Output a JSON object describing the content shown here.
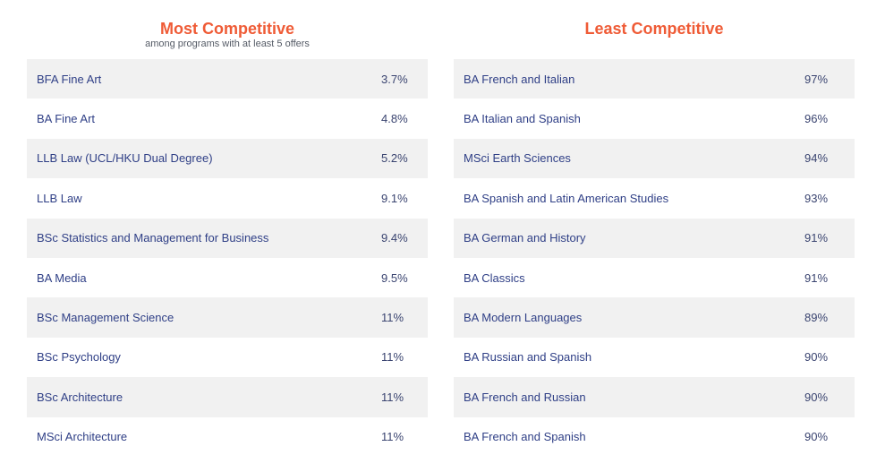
{
  "most": {
    "title": "Most Competitive",
    "subtitle": "among programs with at least 5 offers",
    "rows": [
      {
        "name": "BFA Fine Art",
        "value": "3.7%"
      },
      {
        "name": "BA Fine Art",
        "value": "4.8%"
      },
      {
        "name": "LLB Law (UCL/HKU Dual Degree)",
        "value": "5.2%"
      },
      {
        "name": "LLB Law",
        "value": "9.1%"
      },
      {
        "name": "BSc Statistics and Management for Business",
        "value": "9.4%"
      },
      {
        "name": "BA Media",
        "value": "9.5%"
      },
      {
        "name": "BSc Management Science",
        "value": "11%"
      },
      {
        "name": "BSc Psychology",
        "value": "11%"
      },
      {
        "name": "BSc Architecture",
        "value": "11%"
      },
      {
        "name": "MSci Architecture",
        "value": "11%"
      }
    ]
  },
  "least": {
    "title": "Least Competitive",
    "rows": [
      {
        "name": "BA French and Italian",
        "value": "97%"
      },
      {
        "name": "BA Italian and Spanish",
        "value": "96%"
      },
      {
        "name": "MSci Earth Sciences",
        "value": "94%"
      },
      {
        "name": "BA Spanish and Latin American Studies",
        "value": "93%"
      },
      {
        "name": "BA German and History",
        "value": "91%"
      },
      {
        "name": "BA Classics",
        "value": "91%"
      },
      {
        "name": "BA Modern Languages",
        "value": "89%"
      },
      {
        "name": "BA Russian and Spanish",
        "value": "90%"
      },
      {
        "name": "BA French and Russian",
        "value": "90%"
      },
      {
        "name": "BA French and Spanish",
        "value": "90%"
      }
    ]
  },
  "colors": {
    "title": "#ef5b36",
    "row_text": "#2f3f86",
    "row_shade": "#f1f1f1"
  }
}
